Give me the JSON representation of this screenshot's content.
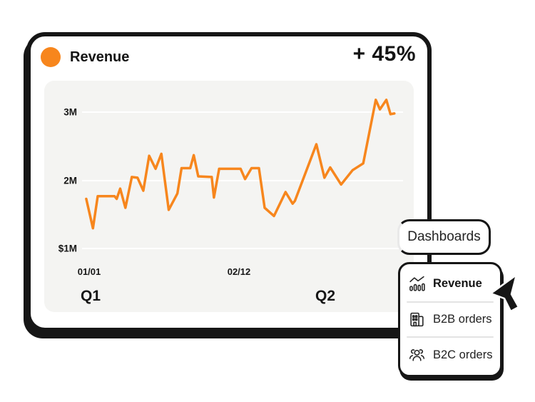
{
  "card": {
    "title": "Revenue",
    "delta": "+ 45%",
    "accent_color": "#F7861D"
  },
  "chart_data": {
    "type": "line",
    "title": "Revenue",
    "unit": "millions",
    "line_color": "#F7861D",
    "panel_background": "#F4F4F2",
    "grid": "horizontal-white-lines",
    "ylim_M": [
      1,
      3.4
    ],
    "y_ticks": [
      {
        "label": "3M",
        "value": 3
      },
      {
        "label": "2M",
        "value": 2
      },
      {
        "label": "$1M",
        "value": 1
      }
    ],
    "x_ticks": [
      "01/01",
      "02/12"
    ],
    "quarter_labels": [
      "Q1",
      "Q2"
    ],
    "points": [
      [
        0.013,
        1.73
      ],
      [
        0.034,
        1.3
      ],
      [
        0.049,
        1.77
      ],
      [
        0.101,
        1.77
      ],
      [
        0.108,
        1.73
      ],
      [
        0.119,
        1.88
      ],
      [
        0.135,
        1.6
      ],
      [
        0.155,
        2.05
      ],
      [
        0.173,
        2.04
      ],
      [
        0.191,
        1.85
      ],
      [
        0.209,
        2.36
      ],
      [
        0.229,
        2.17
      ],
      [
        0.247,
        2.39
      ],
      [
        0.27,
        1.57
      ],
      [
        0.297,
        1.81
      ],
      [
        0.31,
        2.18
      ],
      [
        0.337,
        2.18
      ],
      [
        0.348,
        2.37
      ],
      [
        0.362,
        2.06
      ],
      [
        0.404,
        2.05
      ],
      [
        0.411,
        1.75
      ],
      [
        0.427,
        2.17
      ],
      [
        0.494,
        2.17
      ],
      [
        0.508,
        2.02
      ],
      [
        0.528,
        2.18
      ],
      [
        0.551,
        2.18
      ],
      [
        0.569,
        1.6
      ],
      [
        0.598,
        1.48
      ],
      [
        0.634,
        1.83
      ],
      [
        0.656,
        1.66
      ],
      [
        0.663,
        1.7
      ],
      [
        0.73,
        2.53
      ],
      [
        0.755,
        2.04
      ],
      [
        0.773,
        2.19
      ],
      [
        0.807,
        1.94
      ],
      [
        0.843,
        2.15
      ],
      [
        0.876,
        2.25
      ],
      [
        0.915,
        3.18
      ],
      [
        0.928,
        3.04
      ],
      [
        0.948,
        3.18
      ],
      [
        0.961,
        2.97
      ],
      [
        0.973,
        2.98
      ]
    ]
  },
  "tooltip": {
    "label": "Dashboards"
  },
  "menu": {
    "items": [
      {
        "label": "Revenue",
        "icon": "bar-chart-trend-icon",
        "active": true
      },
      {
        "label": "B2B orders",
        "icon": "building-icon",
        "active": false
      },
      {
        "label": "B2C orders",
        "icon": "people-group-icon",
        "active": false
      }
    ]
  }
}
